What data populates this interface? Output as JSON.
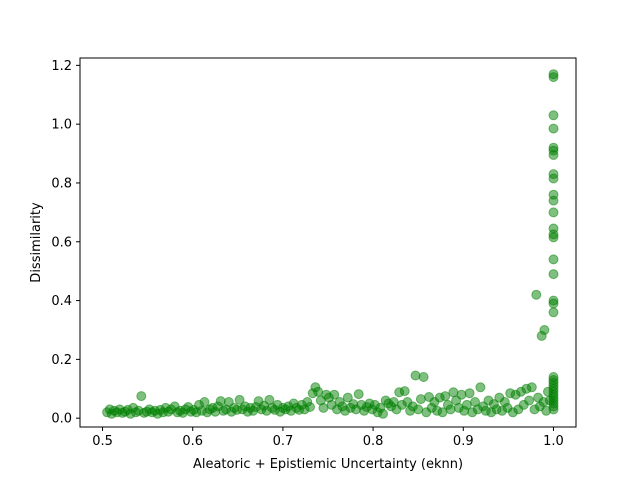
{
  "chart_data": {
    "type": "scatter",
    "title": "",
    "xlabel": "Aleatoric + Epistiemic Uncertainty (eknn)",
    "ylabel": "Dissimilarity",
    "xlim": [
      0.475,
      1.025
    ],
    "ylim": [
      -0.03,
      1.225
    ],
    "xticks": [
      0.5,
      0.6,
      0.7,
      0.8,
      0.9,
      1.0
    ],
    "xtick_labels": [
      "0.5",
      "0.6",
      "0.7",
      "0.8",
      "0.9",
      "1.0"
    ],
    "yticks": [
      0.0,
      0.2,
      0.4,
      0.6,
      0.8,
      1.0,
      1.2
    ],
    "ytick_labels": [
      "0.0",
      "0.2",
      "0.4",
      "0.6",
      "0.8",
      "1.0",
      "1.2"
    ],
    "grid": false,
    "marker_color": "#008000",
    "marker_alpha": 0.5,
    "points": [
      [
        0.505,
        0.02
      ],
      [
        0.508,
        0.03
      ],
      [
        0.51,
        0.015
      ],
      [
        0.513,
        0.025
      ],
      [
        0.516,
        0.02
      ],
      [
        0.519,
        0.03
      ],
      [
        0.522,
        0.018
      ],
      [
        0.525,
        0.022
      ],
      [
        0.528,
        0.028
      ],
      [
        0.531,
        0.015
      ],
      [
        0.534,
        0.035
      ],
      [
        0.537,
        0.02
      ],
      [
        0.54,
        0.025
      ],
      [
        0.543,
        0.075
      ],
      [
        0.546,
        0.018
      ],
      [
        0.549,
        0.022
      ],
      [
        0.552,
        0.03
      ],
      [
        0.555,
        0.02
      ],
      [
        0.558,
        0.025
      ],
      [
        0.561,
        0.015
      ],
      [
        0.564,
        0.028
      ],
      [
        0.567,
        0.02
      ],
      [
        0.57,
        0.035
      ],
      [
        0.573,
        0.022
      ],
      [
        0.576,
        0.03
      ],
      [
        0.58,
        0.04
      ],
      [
        0.583,
        0.02
      ],
      [
        0.586,
        0.025
      ],
      [
        0.589,
        0.018
      ],
      [
        0.592,
        0.03
      ],
      [
        0.595,
        0.038
      ],
      [
        0.598,
        0.022
      ],
      [
        0.601,
        0.028
      ],
      [
        0.604,
        0.02
      ],
      [
        0.607,
        0.045
      ],
      [
        0.61,
        0.025
      ],
      [
        0.613,
        0.055
      ],
      [
        0.616,
        0.02
      ],
      [
        0.619,
        0.03
      ],
      [
        0.622,
        0.035
      ],
      [
        0.625,
        0.022
      ],
      [
        0.628,
        0.04
      ],
      [
        0.631,
        0.058
      ],
      [
        0.634,
        0.025
      ],
      [
        0.637,
        0.03
      ],
      [
        0.64,
        0.055
      ],
      [
        0.643,
        0.022
      ],
      [
        0.646,
        0.035
      ],
      [
        0.649,
        0.028
      ],
      [
        0.652,
        0.062
      ],
      [
        0.655,
        0.03
      ],
      [
        0.658,
        0.04
      ],
      [
        0.661,
        0.022
      ],
      [
        0.664,
        0.035
      ],
      [
        0.667,
        0.025
      ],
      [
        0.67,
        0.038
      ],
      [
        0.673,
        0.058
      ],
      [
        0.676,
        0.03
      ],
      [
        0.679,
        0.042
      ],
      [
        0.682,
        0.025
      ],
      [
        0.685,
        0.062
      ],
      [
        0.688,
        0.035
      ],
      [
        0.691,
        0.028
      ],
      [
        0.694,
        0.045
      ],
      [
        0.697,
        0.022
      ],
      [
        0.7,
        0.035
      ],
      [
        0.703,
        0.03
      ],
      [
        0.706,
        0.04
      ],
      [
        0.709,
        0.025
      ],
      [
        0.712,
        0.05
      ],
      [
        0.715,
        0.035
      ],
      [
        0.718,
        0.028
      ],
      [
        0.721,
        0.045
      ],
      [
        0.724,
        0.03
      ],
      [
        0.727,
        0.055
      ],
      [
        0.73,
        0.038
      ],
      [
        0.733,
        0.085
      ],
      [
        0.736,
        0.105
      ],
      [
        0.739,
        0.09
      ],
      [
        0.742,
        0.06
      ],
      [
        0.745,
        0.035
      ],
      [
        0.748,
        0.08
      ],
      [
        0.751,
        0.07
      ],
      [
        0.754,
        0.045
      ],
      [
        0.757,
        0.08
      ],
      [
        0.76,
        0.03
      ],
      [
        0.763,
        0.055
      ],
      [
        0.766,
        0.04
      ],
      [
        0.769,
        0.025
      ],
      [
        0.772,
        0.07
      ],
      [
        0.775,
        0.035
      ],
      [
        0.778,
        0.048
      ],
      [
        0.781,
        0.03
      ],
      [
        0.784,
        0.082
      ],
      [
        0.787,
        0.045
      ],
      [
        0.79,
        0.025
      ],
      [
        0.793,
        0.038
      ],
      [
        0.796,
        0.05
      ],
      [
        0.799,
        0.03
      ],
      [
        0.802,
        0.045
      ],
      [
        0.805,
        0.02
      ],
      [
        0.808,
        0.035
      ],
      [
        0.811,
        0.015
      ],
      [
        0.814,
        0.06
      ],
      [
        0.817,
        0.05
      ],
      [
        0.82,
        0.04
      ],
      [
        0.823,
        0.055
      ],
      [
        0.826,
        0.03
      ],
      [
        0.829,
        0.088
      ],
      [
        0.832,
        0.045
      ],
      [
        0.835,
        0.092
      ],
      [
        0.838,
        0.055
      ],
      [
        0.841,
        0.025
      ],
      [
        0.844,
        0.04
      ],
      [
        0.847,
        0.145
      ],
      [
        0.85,
        0.03
      ],
      [
        0.853,
        0.065
      ],
      [
        0.856,
        0.14
      ],
      [
        0.859,
        0.02
      ],
      [
        0.862,
        0.072
      ],
      [
        0.865,
        0.035
      ],
      [
        0.868,
        0.055
      ],
      [
        0.871,
        0.025
      ],
      [
        0.874,
        0.07
      ],
      [
        0.877,
        0.02
      ],
      [
        0.88,
        0.075
      ],
      [
        0.883,
        0.045
      ],
      [
        0.886,
        0.03
      ],
      [
        0.889,
        0.088
      ],
      [
        0.892,
        0.06
      ],
      [
        0.895,
        0.035
      ],
      [
        0.898,
        0.08
      ],
      [
        0.901,
        0.025
      ],
      [
        0.904,
        0.045
      ],
      [
        0.907,
        0.085
      ],
      [
        0.91,
        0.02
      ],
      [
        0.913,
        0.055
      ],
      [
        0.916,
        0.03
      ],
      [
        0.919,
        0.105
      ],
      [
        0.922,
        0.04
      ],
      [
        0.925,
        0.025
      ],
      [
        0.928,
        0.06
      ],
      [
        0.931,
        0.02
      ],
      [
        0.934,
        0.048
      ],
      [
        0.937,
        0.03
      ],
      [
        0.94,
        0.07
      ],
      [
        0.943,
        0.025
      ],
      [
        0.946,
        0.055
      ],
      [
        0.949,
        0.035
      ],
      [
        0.952,
        0.085
      ],
      [
        0.955,
        0.02
      ],
      [
        0.958,
        0.08
      ],
      [
        0.961,
        0.03
      ],
      [
        0.964,
        0.09
      ],
      [
        0.967,
        0.045
      ],
      [
        0.97,
        0.1
      ],
      [
        0.973,
        0.06
      ],
      [
        0.976,
        0.105
      ],
      [
        0.979,
        0.03
      ],
      [
        0.981,
        0.42
      ],
      [
        0.983,
        0.07
      ],
      [
        0.985,
        0.04
      ],
      [
        0.987,
        0.28
      ],
      [
        0.989,
        0.055
      ],
      [
        0.99,
        0.3
      ],
      [
        0.992,
        0.025
      ],
      [
        0.994,
        0.09
      ],
      [
        0.996,
        0.06
      ],
      [
        1.0,
        1.17
      ],
      [
        1.0,
        1.16
      ],
      [
        1.0,
        1.03
      ],
      [
        1.0,
        0.985
      ],
      [
        1.0,
        0.92
      ],
      [
        1.0,
        0.91
      ],
      [
        1.0,
        0.895
      ],
      [
        1.0,
        0.83
      ],
      [
        1.0,
        0.815
      ],
      [
        1.0,
        0.76
      ],
      [
        1.0,
        0.74
      ],
      [
        1.0,
        0.7
      ],
      [
        1.0,
        0.645
      ],
      [
        1.0,
        0.625
      ],
      [
        1.0,
        0.615
      ],
      [
        1.0,
        0.54
      ],
      [
        1.0,
        0.49
      ],
      [
        1.0,
        0.4
      ],
      [
        1.0,
        0.39
      ],
      [
        1.0,
        0.36
      ],
      [
        1.0,
        0.14
      ],
      [
        1.0,
        0.13
      ],
      [
        1.0,
        0.12
      ],
      [
        1.0,
        0.11
      ],
      [
        1.0,
        0.1
      ],
      [
        1.0,
        0.09
      ],
      [
        1.0,
        0.08
      ],
      [
        1.0,
        0.07
      ],
      [
        1.0,
        0.06
      ],
      [
        1.0,
        0.05
      ],
      [
        1.0,
        0.04
      ],
      [
        1.0,
        0.03
      ]
    ]
  }
}
